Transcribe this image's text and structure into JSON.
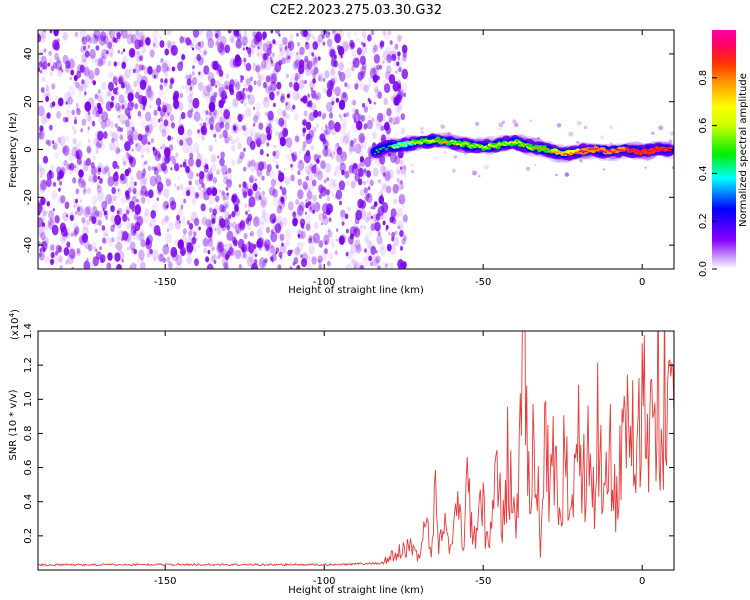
{
  "figure": {
    "title": "C2E2.2023.275.03.30.G32"
  },
  "colors": {
    "snr_line": "#e83a3a",
    "noise": "#7a00ee",
    "colorbar_stops": [
      "#ff00ff",
      "#ff0066",
      "#ff3300",
      "#ff9900",
      "#ffff00",
      "#00ee00",
      "#00ffff",
      "#0000ff",
      "#8800ff",
      "#ffffff"
    ]
  },
  "chart_data": [
    {
      "type": "heatmap",
      "title": "",
      "xlabel": "Height of straight line (km)",
      "ylabel": "Frequency (Hz)",
      "xlim": [
        -190,
        10
      ],
      "ylim": [
        -50,
        50
      ],
      "x_ticks": [
        -150,
        -100,
        -50,
        0
      ],
      "y_ticks": [
        -40,
        -20,
        0,
        20,
        40
      ],
      "grid": false,
      "colorbar": {
        "label": "Normalized spectral amplitude",
        "range": [
          0,
          1
        ],
        "ticks": [
          "0.0",
          "0.2",
          "0.4",
          "0.6",
          "0.8"
        ]
      },
      "noise_region_x": [
        -190,
        -77
      ],
      "signal_ridge": {
        "x": [
          -84,
          -80,
          -75,
          -70,
          -65,
          -60,
          -55,
          -50,
          -45,
          -40,
          -35,
          -30,
          -25,
          -20,
          -15,
          -10,
          -5,
          0,
          5,
          9
        ],
        "frequency": [
          -1,
          1,
          2,
          3,
          4,
          3,
          2,
          1,
          2,
          3,
          1,
          0,
          -2,
          -1,
          0,
          -1,
          0,
          -1,
          0,
          0
        ],
        "amplitude": [
          0.2,
          0.3,
          0.4,
          0.45,
          0.5,
          0.5,
          0.45,
          0.45,
          0.5,
          0.45,
          0.5,
          0.55,
          0.6,
          0.75,
          0.8,
          0.8,
          0.85,
          0.9,
          0.9,
          0.85
        ]
      }
    },
    {
      "type": "line",
      "title": "",
      "xlabel": "Height of straight line (km)",
      "ylabel": "SNR (10 * v/v)",
      "y_multiplier": "(x10",
      "y_multiplier_exp": "4",
      "y_multiplier_close": ")",
      "xlim": [
        -190,
        10
      ],
      "ylim": [
        0,
        14000
      ],
      "x_ticks": [
        -150,
        -100,
        -50,
        0
      ],
      "y_ticks": [
        "0.2",
        "0.4",
        "0.6",
        "0.8",
        "1.0",
        "1.2",
        "1.4"
      ],
      "grid": false,
      "series": [
        {
          "x": [
            -190,
            -150,
            -100,
            -82,
            -72,
            -70,
            -68,
            -66,
            -65,
            -64,
            -62,
            -60,
            -58,
            -56,
            -55,
            -53,
            -50,
            -48,
            -46,
            -44,
            -42,
            -40,
            -38,
            -37,
            -36,
            -34,
            -32,
            -30,
            -29,
            -28,
            -26,
            -24,
            -22,
            -20,
            -18,
            -16,
            -15,
            -14,
            -12,
            -10,
            -8,
            -6,
            -4,
            -3,
            -2,
            0,
            2,
            3,
            4,
            5,
            6,
            7,
            8,
            9,
            10
          ],
          "y": [
            300,
            320,
            310,
            400,
            1500,
            800,
            2800,
            1200,
            4500,
            1500,
            3000,
            1000,
            3500,
            1500,
            4800,
            2000,
            3500,
            1000,
            6500,
            3000,
            6800,
            2500,
            8500,
            14200,
            5000,
            9000,
            1500,
            10000,
            4000,
            7000,
            2500,
            8000,
            3000,
            9000,
            5000,
            7500,
            3500,
            10000,
            4500,
            7000,
            3800,
            10800,
            6500,
            8000,
            5000,
            10500,
            6000,
            11500,
            7000,
            12000,
            5800,
            11200,
            8500,
            12500,
            9000
          ]
        }
      ]
    }
  ]
}
